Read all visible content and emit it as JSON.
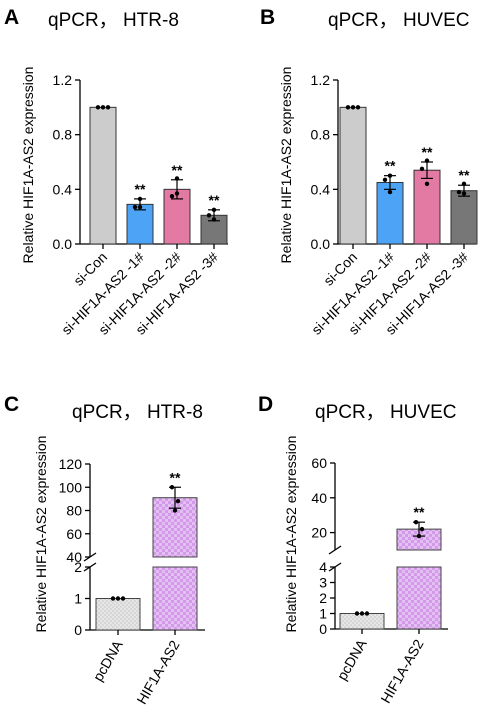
{
  "colors": {
    "si_con": "#cccccc",
    "si_1": "#4da3f5",
    "si_2": "#e37aa3",
    "si_3": "#777777",
    "pcdna": "#d9d9d9",
    "hif1a_as2": "#d29ae8"
  },
  "chart_data": [
    {
      "panel": "A",
      "title": "qPCR， HTR-8",
      "type": "bar",
      "ylabel": "Relative HIF1A-AS2 expression",
      "ylim": [
        0,
        1.2
      ],
      "yticks": [
        "0.0",
        "0.4",
        "0.8",
        "1.2"
      ],
      "categories": [
        "si-Con",
        "si-HIF1A-AS2 -1#",
        "si-HIF1A-AS2 -2#",
        "si-HIF1A-AS2 -3#"
      ],
      "values": [
        1.0,
        0.29,
        0.4,
        0.21
      ],
      "errors": [
        0.0,
        0.04,
        0.07,
        0.04
      ],
      "points": [
        [
          1.0,
          1.0,
          1.0
        ],
        [
          0.33,
          0.27,
          0.27
        ],
        [
          0.48,
          0.35,
          0.37
        ],
        [
          0.25,
          0.21,
          0.18
        ]
      ],
      "annotations": [
        "",
        "**",
        "**",
        "**"
      ]
    },
    {
      "panel": "B",
      "title": "qPCR， HUVEC",
      "type": "bar",
      "ylabel": "Relative HIF1A-AS2 expression",
      "ylim": [
        0,
        1.2
      ],
      "yticks": [
        "0.0",
        "0.4",
        "0.8",
        "1.2"
      ],
      "categories": [
        "si-Con",
        "si-HIF1A-AS2 -1#",
        "si-HIF1A-AS2 -2#",
        "si-HIF1A-AS2 -3#"
      ],
      "values": [
        1.0,
        0.45,
        0.54,
        0.39
      ],
      "errors": [
        0.0,
        0.05,
        0.06,
        0.04
      ],
      "points": [
        [
          1.0,
          1.0,
          1.0
        ],
        [
          0.5,
          0.47,
          0.38
        ],
        [
          0.61,
          0.55,
          0.44
        ],
        [
          0.44,
          0.38,
          0.37
        ]
      ],
      "annotations": [
        "",
        "**",
        "**",
        "**"
      ]
    },
    {
      "panel": "C",
      "title": "qPCR， HTR-8",
      "type": "bar",
      "ylabel": "Relative HIF1A-AS2 expression",
      "axis_break": true,
      "lower": {
        "ylim": [
          0,
          2
        ],
        "yticks": [
          "0",
          "1",
          "2"
        ]
      },
      "upper": {
        "ylim": [
          40,
          120
        ],
        "yticks": [
          "40",
          "60",
          "80",
          "100",
          "120"
        ]
      },
      "categories": [
        "pcDNA",
        "HIF1A-AS2"
      ],
      "values": [
        1.0,
        91
      ],
      "errors": [
        0.0,
        9
      ],
      "points": [
        [
          1.0,
          1.0,
          1.0
        ],
        [
          100,
          88,
          80
        ]
      ],
      "annotations": [
        "",
        "**"
      ]
    },
    {
      "panel": "D",
      "title": "qPCR， HUVEC",
      "type": "bar",
      "ylabel": "Relative HIF1A-AS2 expression",
      "axis_break": true,
      "lower": {
        "ylim": [
          0,
          4
        ],
        "yticks": [
          "0",
          "1",
          "2",
          "3",
          "4"
        ]
      },
      "upper": {
        "ylim": [
          10,
          60
        ],
        "yticks": [
          "20",
          "40",
          "60"
        ]
      },
      "categories": [
        "pcDNA",
        "HIF1A-AS2"
      ],
      "values": [
        1.0,
        22
      ],
      "errors": [
        0.0,
        4
      ],
      "points": [
        [
          1.0,
          1.0,
          1.0
        ],
        [
          26,
          22,
          18
        ]
      ],
      "annotations": [
        "",
        "**"
      ]
    }
  ]
}
